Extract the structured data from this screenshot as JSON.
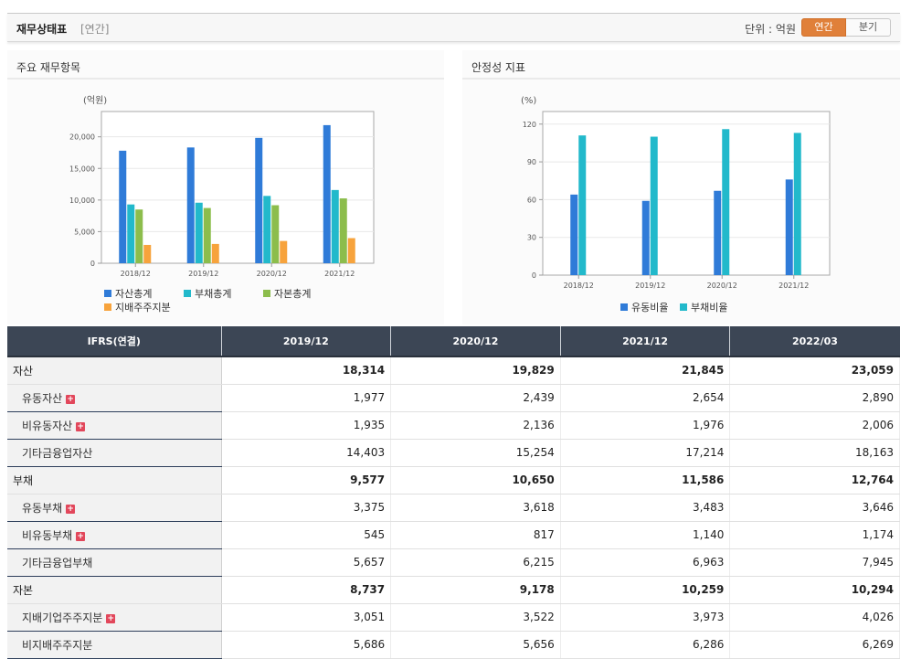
{
  "header": {
    "title": "재무상태표",
    "subtitle": "[연간]",
    "unit": "단위 : 억원",
    "toggle": [
      "연간",
      "분기"
    ]
  },
  "left_panel": {
    "title": "주요 재무항목"
  },
  "right_panel": {
    "title": "안정성 지표"
  },
  "chart_data": [
    {
      "type": "bar",
      "title": "주요 재무항목",
      "ylabel": "(억원)",
      "categories": [
        "2018/12",
        "2019/12",
        "2020/12",
        "2021/12"
      ],
      "ylim": [
        0,
        24000
      ],
      "yticks": [
        0,
        5000,
        10000,
        15000,
        20000
      ],
      "ytick_labels": [
        "0",
        "5,000",
        "10,000",
        "15,000",
        "20,000"
      ],
      "series": [
        {
          "name": "자산총계",
          "color": "#2f7bd8",
          "values": [
            17800,
            18314,
            19829,
            21845
          ]
        },
        {
          "name": "부채총계",
          "color": "#22b9cb",
          "values": [
            9300,
            9577,
            10650,
            11586
          ]
        },
        {
          "name": "자본총계",
          "color": "#8cbd4c",
          "values": [
            8500,
            8737,
            9178,
            10259
          ]
        },
        {
          "name": "지배주주지분",
          "color": "#f7a33c",
          "values": [
            2900,
            3051,
            3522,
            3973
          ]
        }
      ]
    },
    {
      "type": "bar",
      "title": "안정성 지표",
      "ylabel": "(%)",
      "categories": [
        "2018/12",
        "2019/12",
        "2020/12",
        "2021/12"
      ],
      "ylim": [
        0,
        130
      ],
      "yticks": [
        0,
        30,
        60,
        90,
        120
      ],
      "ytick_labels": [
        "0",
        "30",
        "60",
        "90",
        "120"
      ],
      "series": [
        {
          "name": "유동비율",
          "color": "#2f7bd8",
          "values": [
            64,
            59,
            67,
            76
          ]
        },
        {
          "name": "부채비율",
          "color": "#22b9cb",
          "values": [
            111,
            110,
            116,
            113
          ]
        }
      ]
    }
  ],
  "table": {
    "columns": [
      "IFRS(연결)",
      "2019/12",
      "2020/12",
      "2021/12",
      "2022/03"
    ],
    "rows": [
      {
        "label": "자산",
        "major": true,
        "plus": false,
        "values": [
          "18,314",
          "19,829",
          "21,845",
          "23,059"
        ]
      },
      {
        "label": "유동자산",
        "major": false,
        "plus": true,
        "values": [
          "1,977",
          "2,439",
          "2,654",
          "2,890"
        ]
      },
      {
        "label": "비유동자산",
        "major": false,
        "plus": true,
        "values": [
          "1,935",
          "2,136",
          "1,976",
          "2,006"
        ]
      },
      {
        "label": "기타금융업자산",
        "major": false,
        "plus": false,
        "values": [
          "14,403",
          "15,254",
          "17,214",
          "18,163"
        ]
      },
      {
        "label": "부채",
        "major": true,
        "plus": false,
        "values": [
          "9,577",
          "10,650",
          "11,586",
          "12,764"
        ]
      },
      {
        "label": "유동부채",
        "major": false,
        "plus": true,
        "values": [
          "3,375",
          "3,618",
          "3,483",
          "3,646"
        ]
      },
      {
        "label": "비유동부채",
        "major": false,
        "plus": true,
        "values": [
          "545",
          "817",
          "1,140",
          "1,174"
        ]
      },
      {
        "label": "기타금융업부채",
        "major": false,
        "plus": false,
        "values": [
          "5,657",
          "6,215",
          "6,963",
          "7,945"
        ]
      },
      {
        "label": "자본",
        "major": true,
        "plus": false,
        "values": [
          "8,737",
          "9,178",
          "10,259",
          "10,294"
        ]
      },
      {
        "label": "지배기업주주지분",
        "major": false,
        "plus": true,
        "values": [
          "3,051",
          "3,522",
          "3,973",
          "4,026"
        ]
      },
      {
        "label": "비지배주주지분",
        "major": false,
        "plus": false,
        "values": [
          "5,686",
          "5,656",
          "6,286",
          "6,269"
        ]
      }
    ],
    "plus_symbol": "+"
  }
}
